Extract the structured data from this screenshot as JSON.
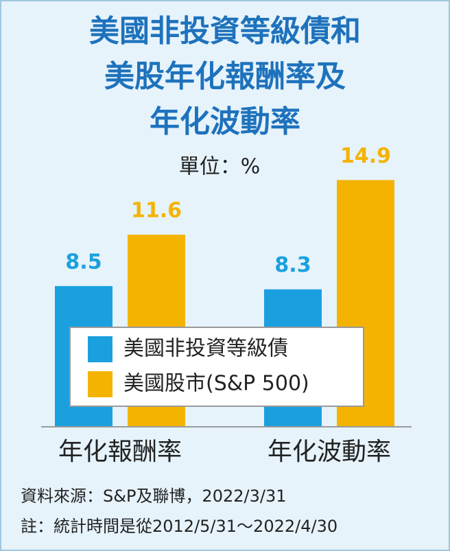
{
  "chart_data": {
    "type": "bar",
    "title": [
      "美國非投資等級債和",
      "美股年化報酬率及",
      "年化波動率"
    ],
    "unit_label": "單位：%",
    "categories": [
      "年化報酬率",
      "年化波動率"
    ],
    "series": [
      {
        "name": "美國非投資等級債",
        "color": "#1aa0df",
        "values": [
          8.5,
          8.3
        ]
      },
      {
        "name": "美國股市(S&P 500)",
        "color": "#f4b300",
        "values": [
          11.6,
          14.9
        ]
      }
    ],
    "ylim": [
      0,
      15
    ],
    "source": "資料來源：S&P及聯博，2022/3/31",
    "note": "註：統計時間是從2012/5/31～2022/4/30"
  }
}
